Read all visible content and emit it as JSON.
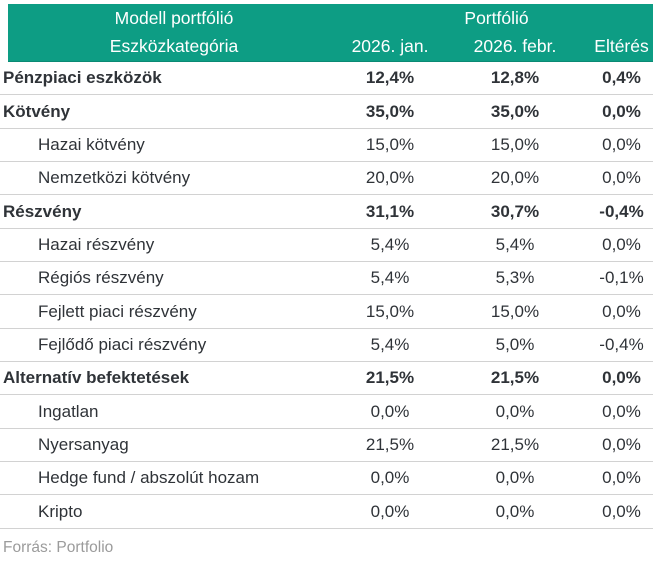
{
  "colors": {
    "header_bg": "#0d9d84",
    "header_edge": "#0a8a74",
    "text": "#2f3338",
    "muted": "#9b9b9b",
    "divider": "#d2d2d2"
  },
  "chart_data": {
    "type": "table",
    "title_left": "Modell portfólió",
    "title_right": "Portfólió",
    "columns": [
      "Eszközkategória",
      "2026. jan.",
      "2026. febr.",
      "Eltérés"
    ],
    "rows": [
      {
        "label": "Pénzpiaci eszközök",
        "level": "section",
        "jan": "12,4%",
        "feb": "12,8%",
        "diff": "0,4%",
        "jan_value": 12.4,
        "feb_value": 12.8,
        "diff_value": 0.4
      },
      {
        "label": "Kötvény",
        "level": "section",
        "jan": "35,0%",
        "feb": "35,0%",
        "diff": "0,0%",
        "jan_value": 35.0,
        "feb_value": 35.0,
        "diff_value": 0.0
      },
      {
        "label": "Hazai kötvény",
        "level": "sub",
        "jan": "15,0%",
        "feb": "15,0%",
        "diff": "0,0%",
        "jan_value": 15.0,
        "feb_value": 15.0,
        "diff_value": 0.0
      },
      {
        "label": "Nemzetközi kötvény",
        "level": "sub",
        "jan": "20,0%",
        "feb": "20,0%",
        "diff": "0,0%",
        "jan_value": 20.0,
        "feb_value": 20.0,
        "diff_value": 0.0
      },
      {
        "label": "Részvény",
        "level": "section",
        "jan": "31,1%",
        "feb": "30,7%",
        "diff": "-0,4%",
        "jan_value": 31.1,
        "feb_value": 30.7,
        "diff_value": -0.4
      },
      {
        "label": "Hazai részvény",
        "level": "sub",
        "jan": "5,4%",
        "feb": "5,4%",
        "diff": "0,0%",
        "jan_value": 5.4,
        "feb_value": 5.4,
        "diff_value": 0.0
      },
      {
        "label": "Régiós részvény",
        "level": "sub",
        "jan": "5,4%",
        "feb": "5,3%",
        "diff": "-0,1%",
        "jan_value": 5.4,
        "feb_value": 5.3,
        "diff_value": -0.1
      },
      {
        "label": "Fejlett piaci részvény",
        "level": "sub",
        "jan": "15,0%",
        "feb": "15,0%",
        "diff": "0,0%",
        "jan_value": 15.0,
        "feb_value": 15.0,
        "diff_value": 0.0
      },
      {
        "label": "Fejlődő piaci részvény",
        "level": "sub",
        "jan": "5,4%",
        "feb": "5,0%",
        "diff": "-0,4%",
        "jan_value": 5.4,
        "feb_value": 5.0,
        "diff_value": -0.4
      },
      {
        "label": "Alternatív befektetések",
        "level": "section",
        "jan": "21,5%",
        "feb": "21,5%",
        "diff": "0,0%",
        "jan_value": 21.5,
        "feb_value": 21.5,
        "diff_value": 0.0
      },
      {
        "label": "Ingatlan",
        "level": "sub",
        "jan": "0,0%",
        "feb": "0,0%",
        "diff": "0,0%",
        "jan_value": 0.0,
        "feb_value": 0.0,
        "diff_value": 0.0
      },
      {
        "label": "Nyersanyag",
        "level": "sub",
        "jan": "21,5%",
        "feb": "21,5%",
        "diff": "0,0%",
        "jan_value": 21.5,
        "feb_value": 21.5,
        "diff_value": 0.0
      },
      {
        "label": "Hedge fund / abszolút hozam",
        "level": "sub",
        "jan": "0,0%",
        "feb": "0,0%",
        "diff": "0,0%",
        "jan_value": 0.0,
        "feb_value": 0.0,
        "diff_value": 0.0
      },
      {
        "label": "Kripto",
        "level": "sub",
        "jan": "0,0%",
        "feb": "0,0%",
        "diff": "0,0%",
        "jan_value": 0.0,
        "feb_value": 0.0,
        "diff_value": 0.0
      }
    ],
    "source": "Forrás: Portfolio",
    "layout": {
      "grid": "horizontal row dividers only",
      "value_alignment": "center",
      "header_rows": 2
    }
  }
}
